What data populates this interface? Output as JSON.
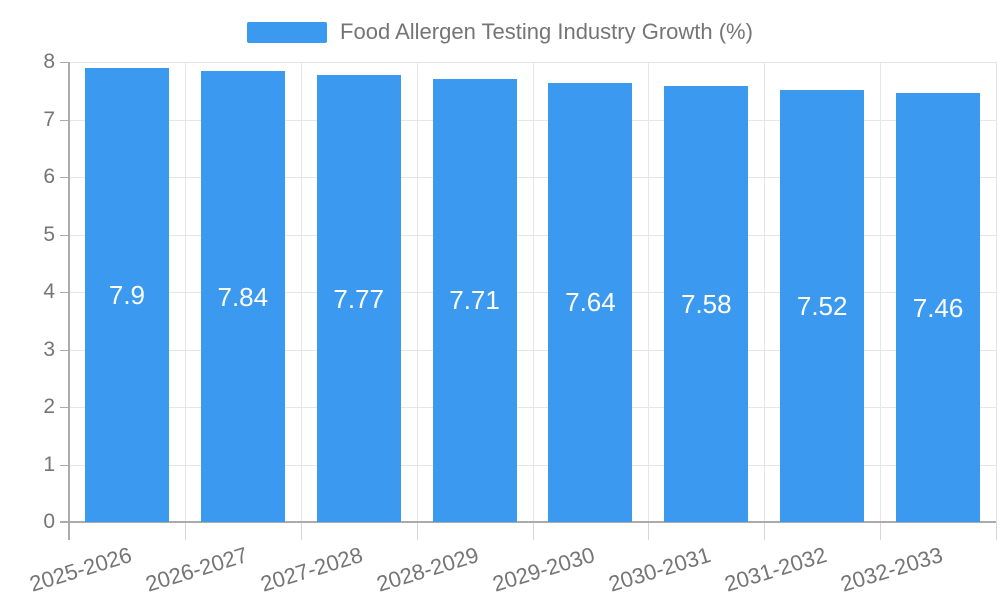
{
  "chart_data": {
    "type": "bar",
    "title": "",
    "legend": "Food Allergen Testing Industry Growth (%)",
    "legend_position": "top-center",
    "categories": [
      "2025-2026",
      "2026-2027",
      "2027-2028",
      "2028-2029",
      "2029-2030",
      "2030-2031",
      "2031-2032",
      "2032-2033"
    ],
    "values": [
      7.9,
      7.84,
      7.77,
      7.71,
      7.64,
      7.58,
      7.52,
      7.46
    ],
    "value_labels": [
      "7.9",
      "7.84",
      "7.77",
      "7.71",
      "7.64",
      "7.58",
      "7.52",
      "7.46"
    ],
    "xlabel": "",
    "ylabel": "",
    "ylim": [
      0,
      8
    ],
    "ytick_labels": [
      "0",
      "1",
      "2",
      "3",
      "4",
      "5",
      "6",
      "7",
      "8"
    ],
    "grid": true,
    "colors": {
      "bar": "#3B99F0",
      "value_label": "#FFFFFF",
      "axis_text": "#757575",
      "grid_line": "#E6E6E6",
      "axis_line": "#ABABAB",
      "tick_line": "#D6D6D6",
      "background": "#FFFFFF"
    }
  }
}
